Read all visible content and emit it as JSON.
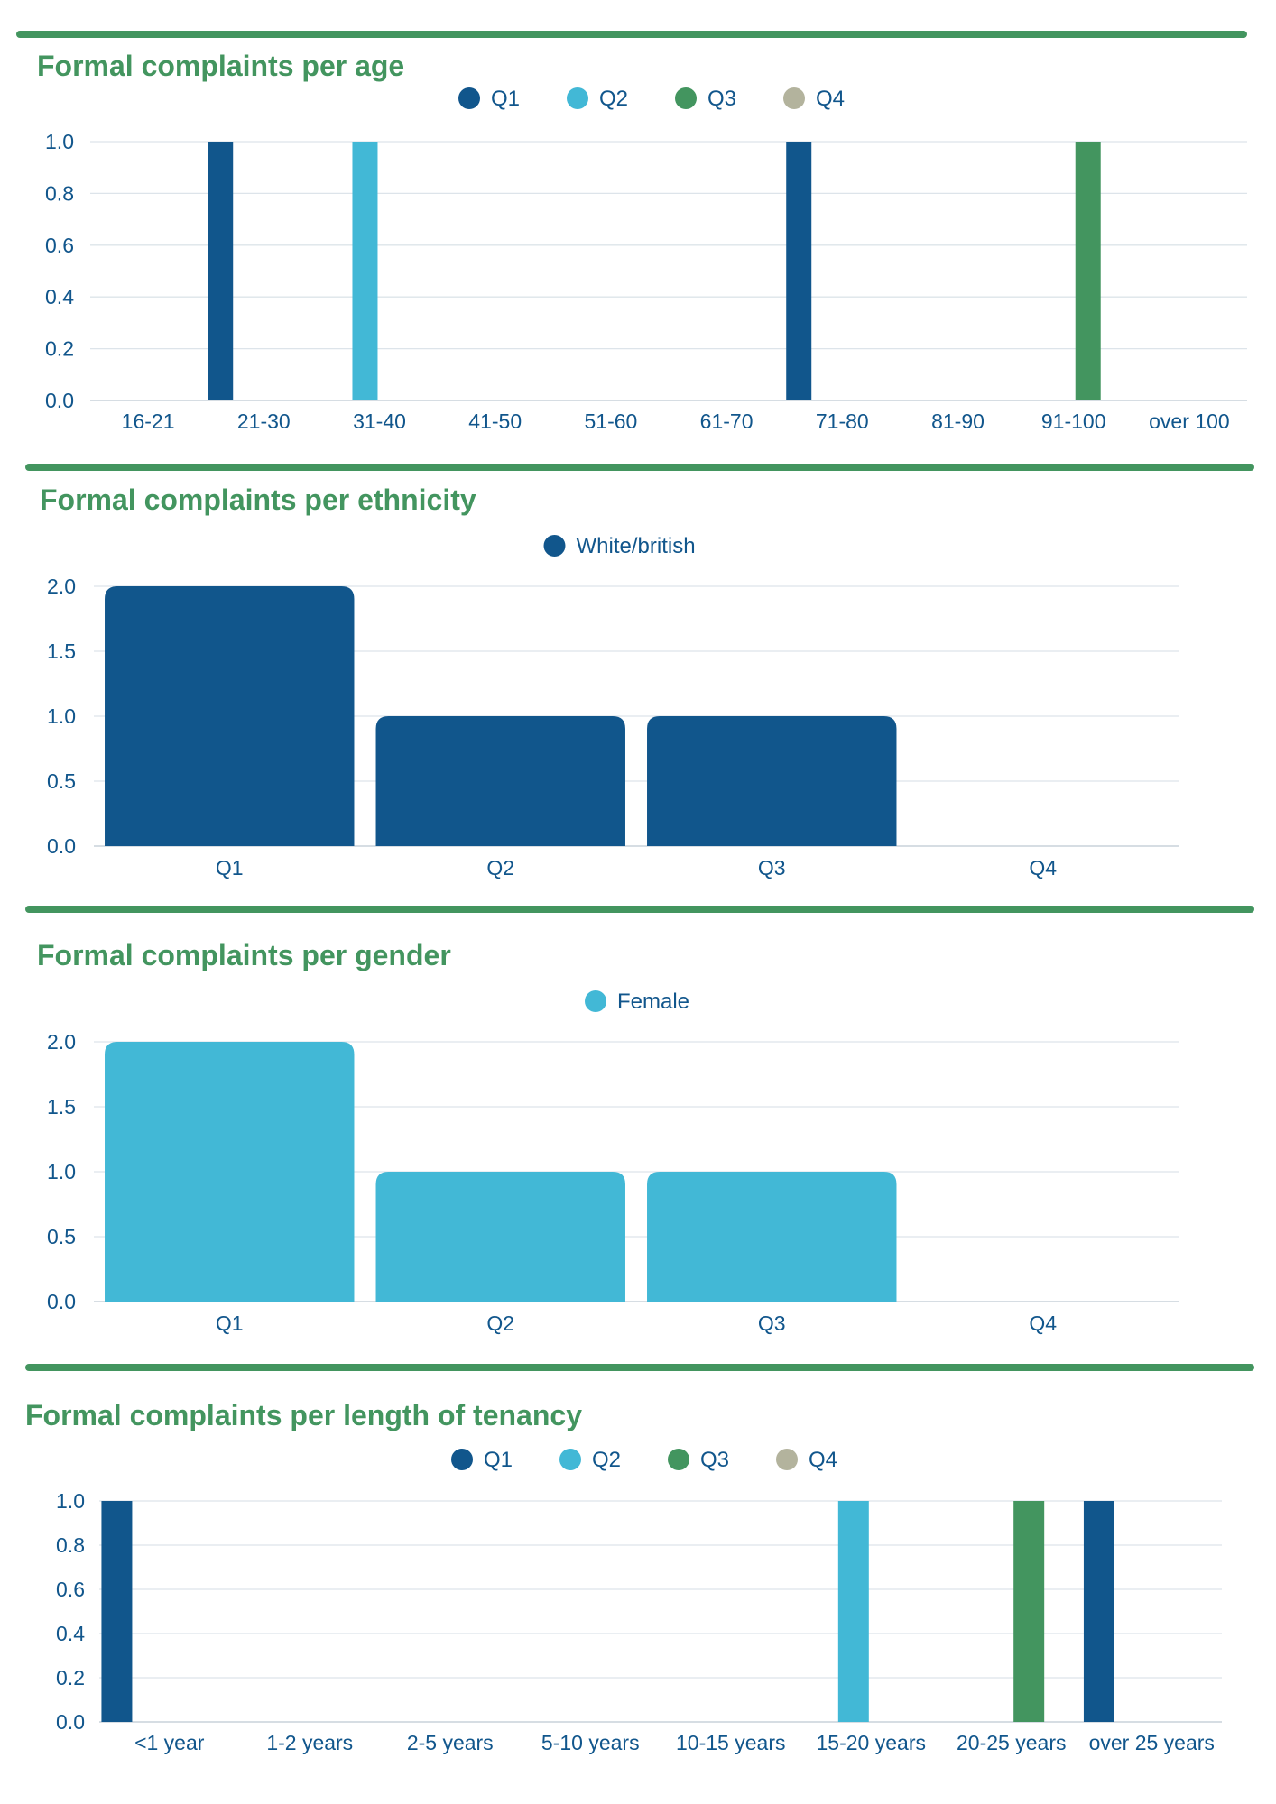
{
  "colors": {
    "rule": "#43955f",
    "title": "#43955f",
    "text": "#11568c",
    "Q1": "#11568c",
    "Q2": "#42b8d6",
    "Q3": "#43955f",
    "Q4": "#b3b39d"
  },
  "chart_data": [
    {
      "type": "bar",
      "title": "Formal complaints per age",
      "categories": [
        "16-21",
        "21-30",
        "31-40",
        "41-50",
        "51-60",
        "61-70",
        "71-80",
        "81-90",
        "91-100",
        "over 100"
      ],
      "series": [
        {
          "name": "Q1",
          "values": [
            0,
            1,
            0,
            0,
            0,
            0,
            1,
            0,
            0,
            0
          ]
        },
        {
          "name": "Q2",
          "values": [
            0,
            0,
            1,
            0,
            0,
            0,
            0,
            0,
            0,
            0
          ]
        },
        {
          "name": "Q3",
          "values": [
            0,
            0,
            0,
            0,
            0,
            0,
            0,
            0,
            1,
            0
          ]
        },
        {
          "name": "Q4",
          "values": [
            0,
            0,
            0,
            0,
            0,
            0,
            0,
            0,
            0,
            0
          ]
        }
      ],
      "yticks": [
        "0.0",
        "0.2",
        "0.4",
        "0.6",
        "0.8",
        "1.0"
      ],
      "ylim": [
        0,
        1
      ],
      "grid": true,
      "legend": "top-center"
    },
    {
      "type": "bar",
      "title": "Formal complaints per ethnicity",
      "categories": [
        "Q1",
        "Q2",
        "Q3",
        "Q4"
      ],
      "series": [
        {
          "name": "White/british",
          "color": "#11568c",
          "values": [
            2,
            1,
            1,
            0
          ]
        }
      ],
      "yticks": [
        "0.0",
        "0.5",
        "1.0",
        "1.5",
        "2.0"
      ],
      "ylim": [
        0,
        2
      ],
      "grid": true,
      "legend": "top-center"
    },
    {
      "type": "bar",
      "title": "Formal complaints per gender",
      "categories": [
        "Q1",
        "Q2",
        "Q3",
        "Q4"
      ],
      "series": [
        {
          "name": "Female",
          "color": "#42b8d6",
          "values": [
            2,
            1,
            1,
            0
          ]
        }
      ],
      "yticks": [
        "0.0",
        "0.5",
        "1.0",
        "1.5",
        "2.0"
      ],
      "ylim": [
        0,
        2
      ],
      "grid": true,
      "legend": "top-center"
    },
    {
      "type": "bar",
      "title": "Formal complaints per length of tenancy",
      "categories": [
        "<1 year",
        "1-2 years",
        "2-5 years",
        "5-10 years",
        "10-15 years",
        "15-20 years",
        "20-25 years",
        "over 25 years"
      ],
      "series": [
        {
          "name": "Q1",
          "values": [
            1,
            0,
            0,
            0,
            0,
            0,
            0,
            1
          ]
        },
        {
          "name": "Q2",
          "values": [
            0,
            0,
            0,
            0,
            0,
            1,
            0,
            0
          ]
        },
        {
          "name": "Q3",
          "values": [
            0,
            0,
            0,
            0,
            0,
            0,
            1,
            0
          ]
        },
        {
          "name": "Q4",
          "values": [
            0,
            0,
            0,
            0,
            0,
            0,
            0,
            0
          ]
        }
      ],
      "yticks": [
        "0.0",
        "0.2",
        "0.4",
        "0.6",
        "0.8",
        "1.0"
      ],
      "ylim": [
        0,
        1
      ],
      "grid": true,
      "legend": "top-center"
    }
  ]
}
